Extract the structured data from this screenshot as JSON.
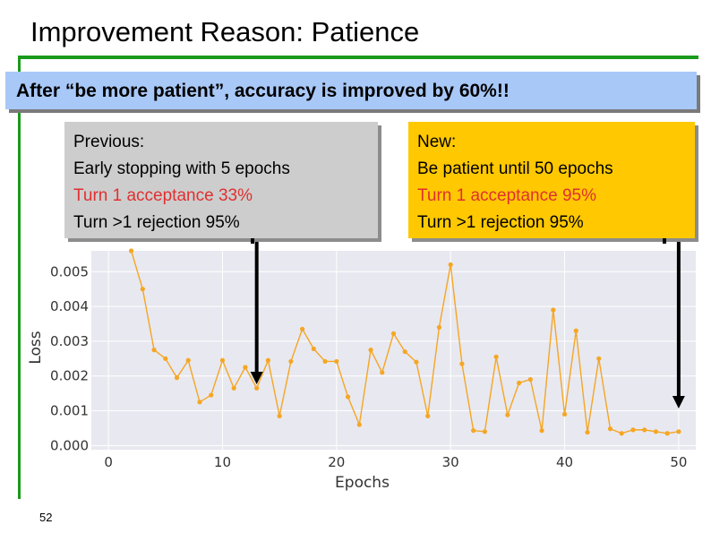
{
  "slide": {
    "title": "Improvement Reason: Patience",
    "banner": "After “be more patient”, accuracy is improved by 60%!!",
    "page_number": "52",
    "accent_color": "#1a9a1a",
    "banner_color": "#a8c8f8"
  },
  "previous_box": {
    "heading": "Previous:",
    "line1": "Early stopping with 5 epochs",
    "line2": "Turn 1 acceptance 33%",
    "line3": "Turn >1 rejection 95%",
    "color": "#cdcdcd"
  },
  "new_box": {
    "heading": "New:",
    "line1": "Be patient until 50 epochs",
    "line2": "Turn 1 acceptance 95%",
    "line3": "Turn >1 rejection 95%",
    "color": "#ffc800"
  },
  "arrows": [
    {
      "name": "arrow-previous-stop",
      "epoch": 13
    },
    {
      "name": "arrow-new-stop",
      "epoch": 50
    }
  ],
  "chart_data": {
    "type": "line",
    "xlabel": "Epochs",
    "ylabel": "Loss",
    "xlim": [
      -1.5,
      51.5
    ],
    "ylim": [
      -0.00012,
      0.0056
    ],
    "x_ticks": [
      0,
      10,
      20,
      30,
      40,
      50
    ],
    "y_ticks": [
      0.0,
      0.001,
      0.002,
      0.003,
      0.004,
      0.005
    ],
    "x_tick_labels": [
      "0",
      "10",
      "20",
      "30",
      "40",
      "50"
    ],
    "y_tick_labels": [
      "0.000",
      "0.001",
      "0.002",
      "0.003",
      "0.004",
      "0.005"
    ],
    "grid": true,
    "line_color": "#f5a623",
    "plot_bg": "#e8e8f0",
    "series": [
      {
        "x": [
          2,
          3,
          4,
          5,
          6,
          7,
          8,
          9,
          10,
          11,
          12,
          13,
          14,
          15,
          16,
          17,
          18,
          19,
          20,
          21,
          22,
          23,
          24,
          25,
          26,
          27,
          28,
          29,
          30,
          31,
          32,
          33,
          34,
          35,
          36,
          37,
          38,
          39,
          40,
          41,
          42,
          43,
          44,
          45,
          46,
          47,
          48,
          49,
          50
        ],
        "values": [
          0.0056,
          0.0045,
          0.00275,
          0.0025,
          0.00195,
          0.00245,
          0.00125,
          0.00145,
          0.00245,
          0.00165,
          0.00225,
          0.00165,
          0.00245,
          0.00085,
          0.00242,
          0.00335,
          0.00278,
          0.00242,
          0.00242,
          0.0014,
          0.0006,
          0.00275,
          0.0021,
          0.00322,
          0.0027,
          0.0024,
          0.00085,
          0.0034,
          0.0052,
          0.00235,
          0.00043,
          0.0004,
          0.00255,
          0.00088,
          0.0018,
          0.0019,
          0.00043,
          0.0039,
          0.0009,
          0.0033,
          0.00038,
          0.0025,
          0.00048,
          0.00035,
          0.00045,
          0.00045,
          0.0004,
          0.00035,
          0.0004
        ]
      }
    ]
  }
}
